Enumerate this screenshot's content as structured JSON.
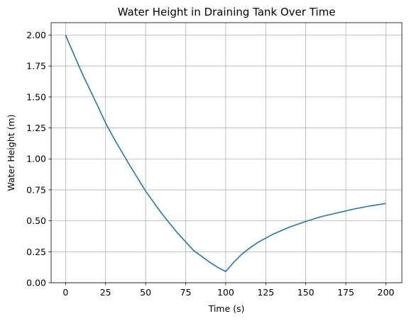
{
  "chart_data": {
    "type": "line",
    "title": "Water Height in Draining Tank Over Time",
    "xlabel": "Time (s)",
    "ylabel": "Water Height (m)",
    "xlim": [
      -9,
      210
    ],
    "ylim": [
      0,
      2.1
    ],
    "grid": true,
    "x_ticks": [
      0,
      25,
      50,
      75,
      100,
      125,
      150,
      175,
      200
    ],
    "x_tick_labels": [
      "0",
      "25",
      "50",
      "75",
      "100",
      "125",
      "150",
      "175",
      "200"
    ],
    "y_ticks": [
      0,
      0.25,
      0.5,
      0.75,
      1.0,
      1.25,
      1.5,
      1.75,
      2.0
    ],
    "y_tick_labels": [
      "0.00",
      "0.25",
      "0.50",
      "0.75",
      "1.00",
      "1.25",
      "1.50",
      "1.75",
      "2.00"
    ],
    "colors": {
      "line": "#1f77b4",
      "grid": "#b0b0b0",
      "axes": "#000000"
    },
    "series": [
      {
        "x": [
          0,
          10,
          20,
          25,
          30,
          40,
          50,
          60,
          70,
          75,
          80,
          90,
          95,
          100,
          105,
          110,
          115,
          120,
          125,
          130,
          140,
          150,
          160,
          170,
          175,
          180,
          190,
          200
        ],
        "values": [
          2.0,
          1.7,
          1.43,
          1.29,
          1.17,
          0.95,
          0.74,
          0.56,
          0.4,
          0.33,
          0.26,
          0.165,
          0.125,
          0.09,
          0.165,
          0.23,
          0.28,
          0.325,
          0.36,
          0.395,
          0.45,
          0.495,
          0.535,
          0.565,
          0.58,
          0.595,
          0.62,
          0.64
        ]
      }
    ]
  }
}
